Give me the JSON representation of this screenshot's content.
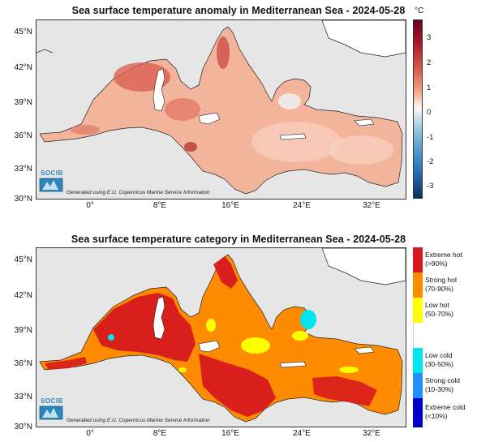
{
  "top_panel": {
    "title": "Sea surface temperature anomaly in Mediterranean Sea - 2024-05-28",
    "colorbar_unit": "°C",
    "colorbar_ticks": [
      "3",
      "2",
      "1",
      "0",
      "-1",
      "-2",
      "-3"
    ],
    "colorbar_range": [
      -3.5,
      3.5
    ],
    "y_labels": [
      "45°N",
      "42°N",
      "39°N",
      "36°N",
      "33°N",
      "30°N"
    ],
    "x_labels": [
      "0°",
      "8°E",
      "16°E",
      "24°E",
      "32°E"
    ],
    "logo_text": "SOCIB",
    "credit": "Generated using E.U. Copernicus Marine Service Information"
  },
  "bottom_panel": {
    "title": "Sea surface temperature category in Mediterranean Sea - 2024-05-28",
    "y_labels": [
      "45°N",
      "42°N",
      "39°N",
      "36°N",
      "33°N",
      "30°N"
    ],
    "x_labels": [
      "0°",
      "8°E",
      "16°E",
      "24°E",
      "32°E"
    ],
    "logo_text": "SOCIB",
    "credit": "Generated using E.U. Copernicus Marine Service Information",
    "legend": [
      {
        "line1": "Extreme hot",
        "line2": "(>90%)",
        "color": "#d7191c"
      },
      {
        "line1": "Strong hot",
        "line2": "(70-90%)",
        "color": "#ff8c00"
      },
      {
        "line1": "Low hot",
        "line2": "(50-70%)",
        "color": "#ffff00"
      },
      {
        "line1": "",
        "line2": "",
        "color": "#ffffff"
      },
      {
        "line1": "Low cold",
        "line2": "(30-50%)",
        "color": "#00e5ee"
      },
      {
        "line1": "Strong cold",
        "line2": "(10-30%)",
        "color": "#1e90ff"
      },
      {
        "line1": "Extreme cold",
        "line2": "(<10%)",
        "color": "#0000cd"
      }
    ]
  },
  "colors": {
    "land": "#ffffff",
    "background": "#e6e6e6",
    "anomaly_sea": "#f3b49c",
    "anomaly_hot": "#d9594c",
    "category_extreme_hot": "#d7191c",
    "category_strong_hot": "#ff8c00",
    "category_low_hot": "#ffff00",
    "category_low_cold": "#00e5ee",
    "logo": "#2a86b8"
  }
}
